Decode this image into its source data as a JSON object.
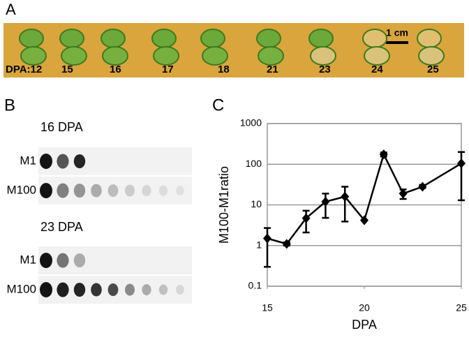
{
  "figure": {
    "panel_labels": [
      "A",
      "B",
      "C"
    ],
    "a_labels": [
      "DPA:12",
      "15",
      "16",
      "17",
      "18",
      "21",
      "23",
      "24",
      "25"
    ],
    "scale_bar": "1 cm",
    "b_groups": [
      {
        "title": "16 DPA",
        "rows": [
          "M1",
          "M100"
        ]
      },
      {
        "title": "23 DPA",
        "rows": [
          "M1",
          "M100"
        ]
      }
    ]
  },
  "chart_data": {
    "type": "line",
    "log_y": true,
    "grid": true,
    "color": "#000000",
    "xlabel": "DPA",
    "ylabel": "M100-M1ratio",
    "x": [
      15,
      16,
      17,
      18,
      19,
      20,
      21,
      22,
      23,
      25
    ],
    "values": [
      1.5,
      1.1,
      4.7,
      12,
      16,
      4.2,
      175,
      19,
      28,
      105
    ],
    "err_low": [
      0.3,
      1.0,
      2.1,
      4.8,
      3.9,
      null,
      155,
      14,
      26,
      13
    ],
    "err_high": [
      2.7,
      1.2,
      7.2,
      19,
      28,
      null,
      195,
      24,
      31,
      200
    ],
    "xlim": [
      15,
      25
    ],
    "xticks": [
      15,
      20,
      25
    ],
    "ylim": [
      0.1,
      1000
    ],
    "yticks": [
      0.1,
      1,
      10,
      100,
      1000
    ]
  }
}
